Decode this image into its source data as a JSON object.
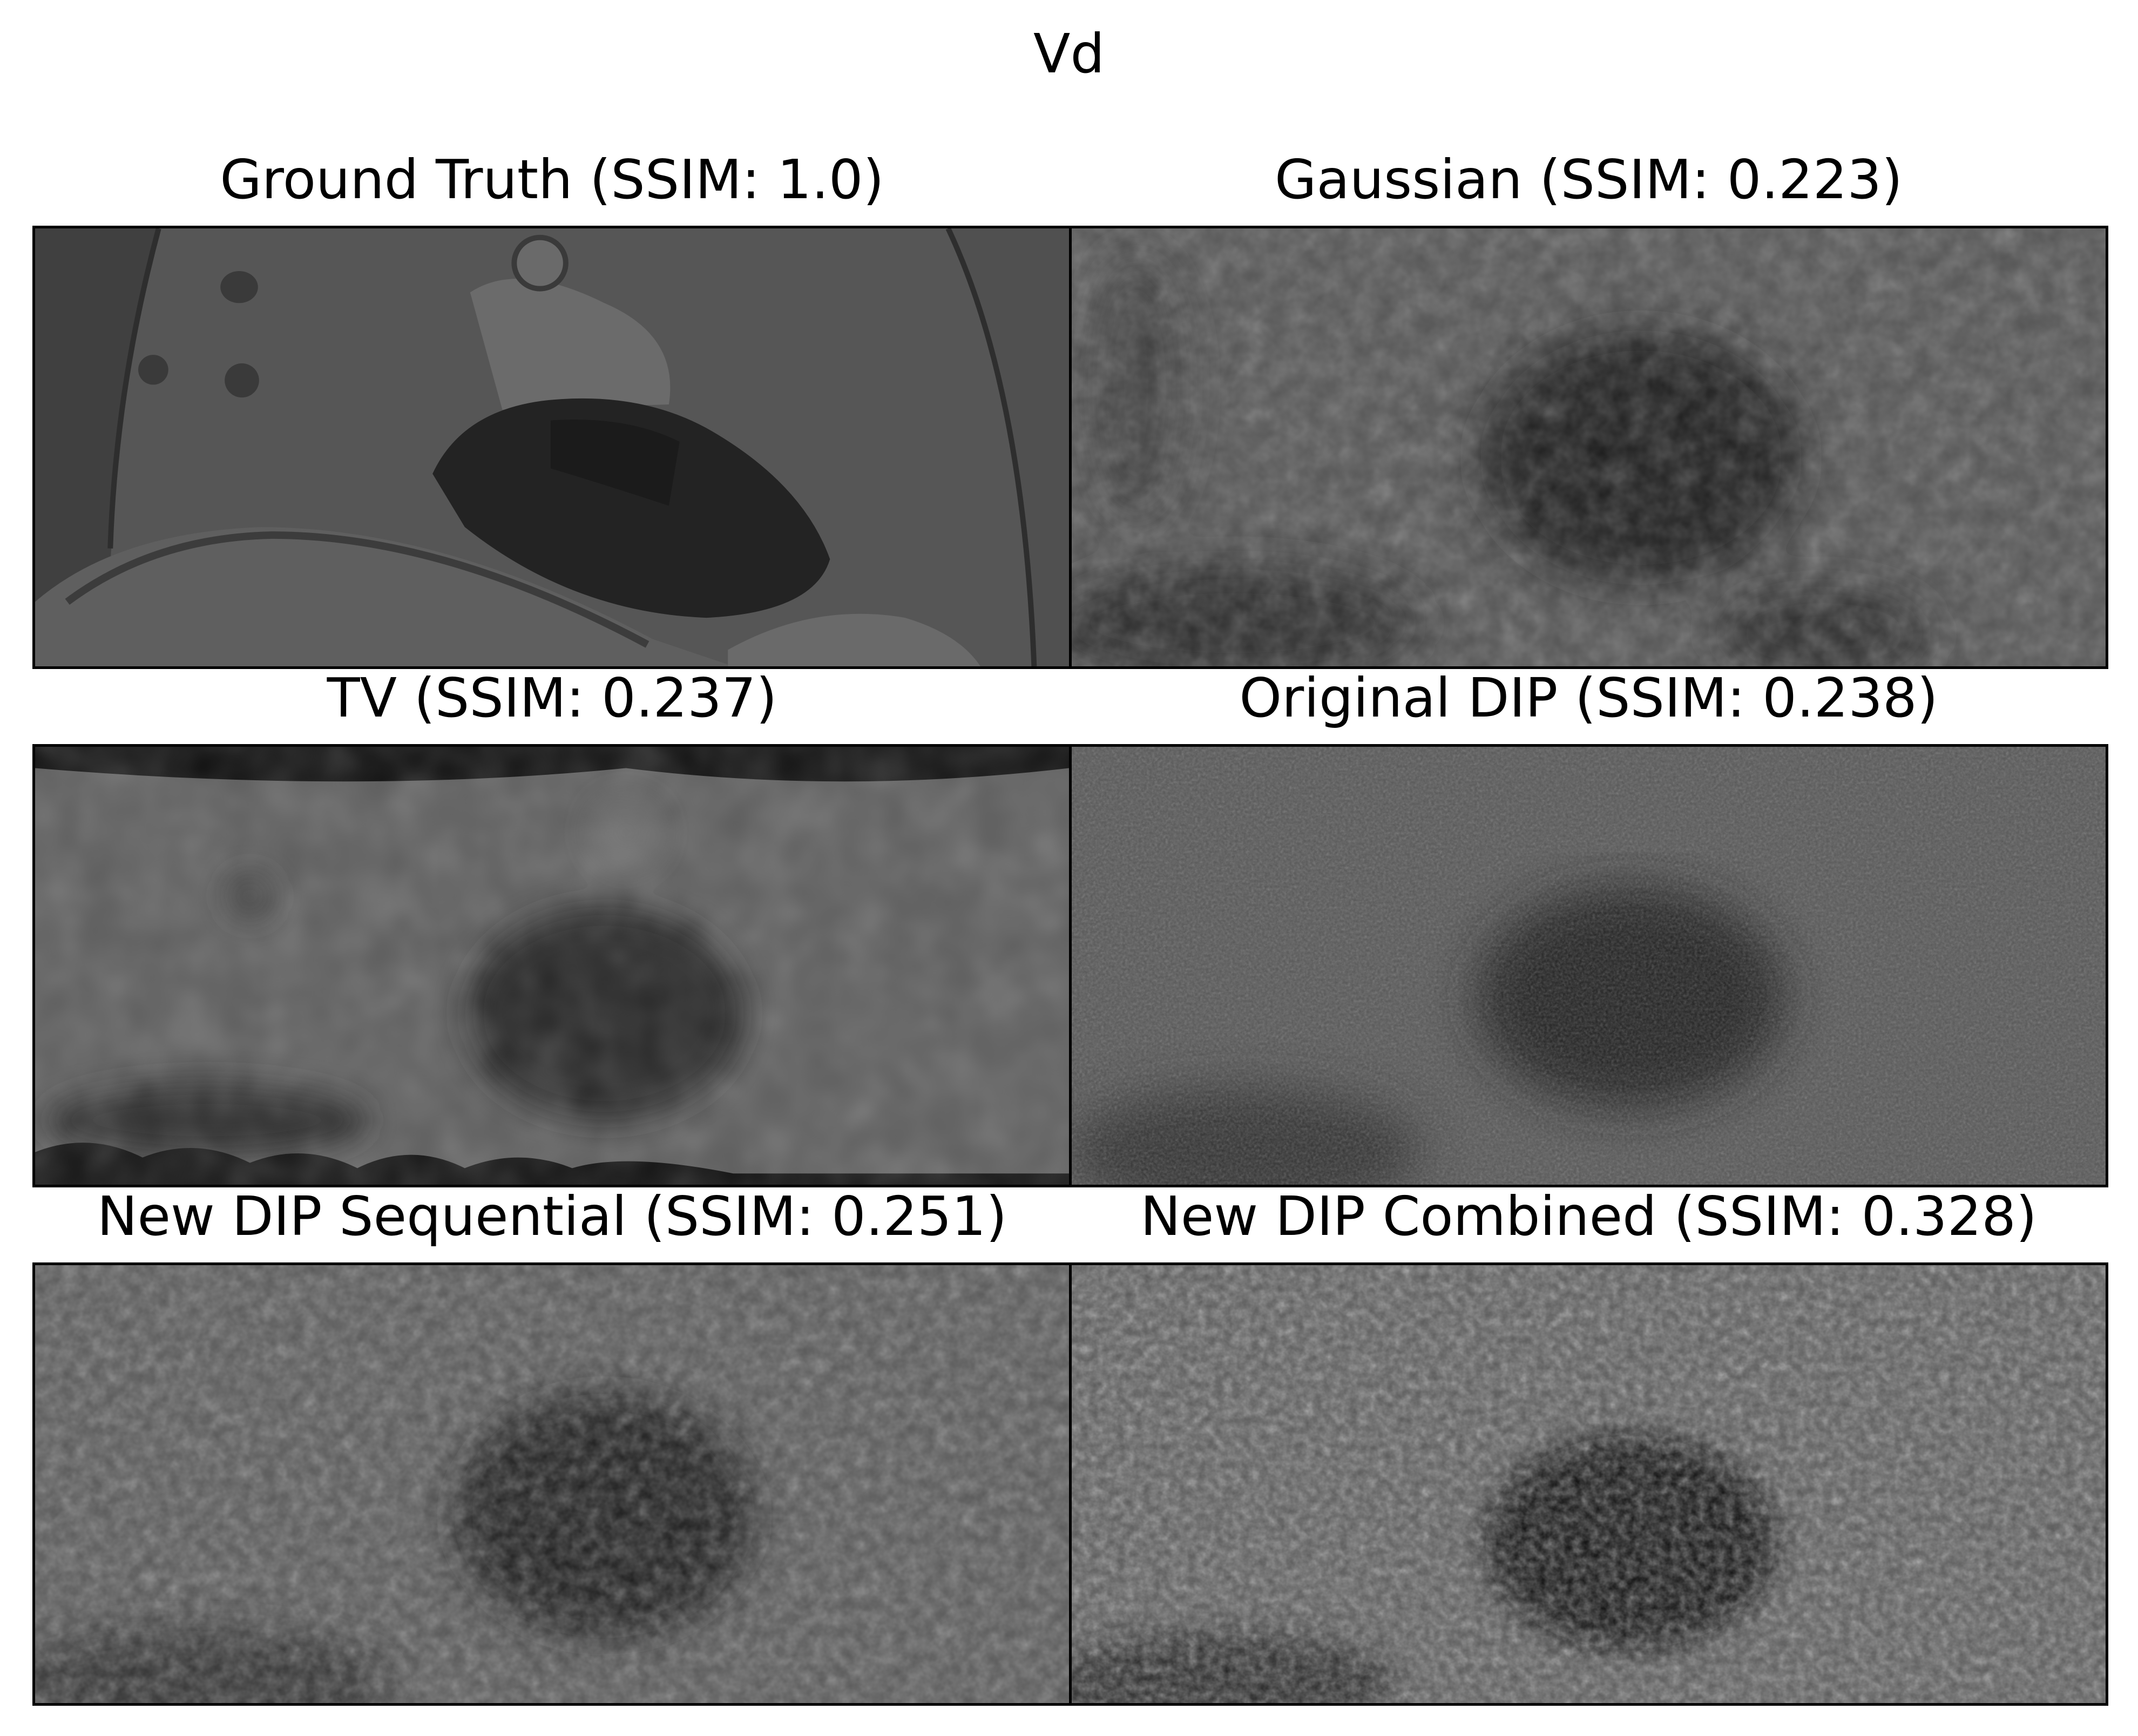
{
  "figure": {
    "suptitle": "Vd",
    "panels": [
      {
        "title": "Ground Truth (SSIM: 1.0)",
        "ssim": 1.0
      },
      {
        "title": "Gaussian (SSIM: 0.223)",
        "ssim": 0.223
      },
      {
        "title": "TV (SSIM: 0.237)",
        "ssim": 0.237
      },
      {
        "title": "Original DIP (SSIM: 0.238)",
        "ssim": 0.238
      },
      {
        "title": "New DIP Sequential (SSIM: 0.251)",
        "ssim": 0.251
      },
      {
        "title": "New DIP Combined (SSIM: 0.328)",
        "ssim": 0.328
      }
    ]
  }
}
